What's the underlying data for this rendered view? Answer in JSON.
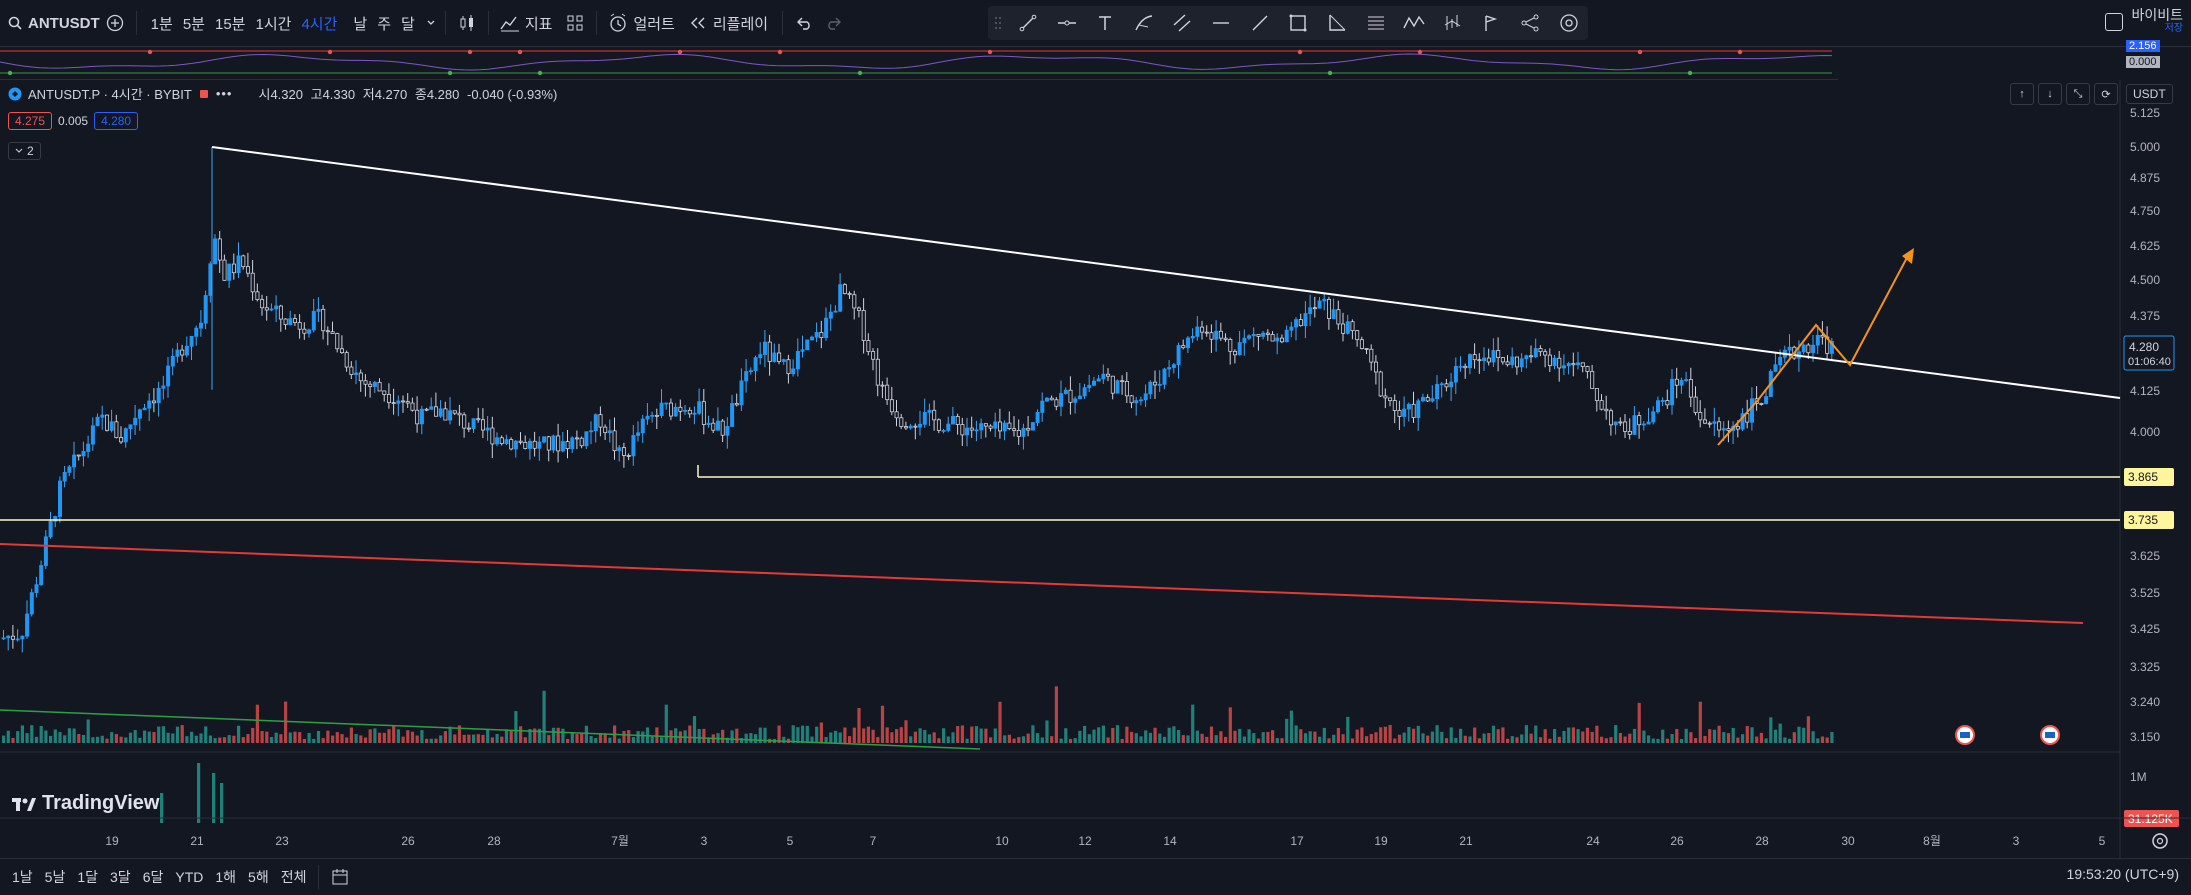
{
  "toolbar": {
    "symbol": "ANTUSDT",
    "intervals": [
      "1분",
      "5분",
      "15분",
      "1시간",
      "4시간",
      "날",
      "주",
      "달"
    ],
    "active_interval": "4시간",
    "indicators_label": "지표",
    "alert_label": "얼러트",
    "replay_label": "리플레이"
  },
  "brand": {
    "name": "바이비트",
    "sub": "저장"
  },
  "legend": {
    "symbol_line": "ANTUSDT.P · 4시간 · BYBIT",
    "open": "시4.320",
    "high": "고4.330",
    "low": "저4.270",
    "close": "종4.280",
    "change": "-0.040 (-0.93%)",
    "bid": "4.275",
    "spread": "0.005",
    "ask": "4.280",
    "collapse": "2"
  },
  "indicator_pane": {
    "value_top": "2.156",
    "value_zero": "0.000"
  },
  "price_axis": {
    "unit": "USDT",
    "ticks": [
      "5.125",
      "5.000",
      "4.875",
      "4.750",
      "4.625",
      "4.500",
      "4.375",
      "4.125",
      "4.000",
      "3.625",
      "3.525",
      "3.425",
      "3.325",
      "3.240",
      "3.150"
    ],
    "current_price": "4.280",
    "countdown": "01:06:40",
    "level_1": "3.865",
    "level_2": "3.735"
  },
  "volume_axis": {
    "tick": "1M",
    "current": "31.125K"
  },
  "time_axis": [
    "19",
    "21",
    "23",
    "26",
    "28",
    "7월",
    "3",
    "5",
    "7",
    "10",
    "12",
    "14",
    "17",
    "19",
    "21",
    "24",
    "26",
    "28",
    "30",
    "8월",
    "3",
    "5"
  ],
  "bottom_bar": {
    "ranges": [
      "1날",
      "5날",
      "1달",
      "3달",
      "6달",
      "YTD",
      "1해",
      "5해",
      "전체"
    ],
    "clock": "19:53:20 (UTC+9)"
  },
  "logo": "TradingView",
  "colors": {
    "up": "#26a69a",
    "up_candle": "#2196f3",
    "down": "#ef5350",
    "bg": "#131722",
    "arrow": "#f7931a"
  },
  "chart_data": {
    "type": "candlestick",
    "symbol": "ANTUSDT.P",
    "interval": "4h",
    "exchange": "BYBIT",
    "last": {
      "open": 4.32,
      "high": 4.33,
      "low": 4.27,
      "close": 4.28
    },
    "y_range": [
      3.15,
      5.15
    ],
    "horizontal_levels": [
      3.865,
      3.735
    ],
    "x_labels": [
      "19",
      "21",
      "23",
      "26",
      "28",
      "7월",
      "3",
      "5",
      "7",
      "10",
      "12",
      "14",
      "17",
      "19",
      "21",
      "24",
      "26",
      "28",
      "30",
      "8월",
      "3",
      "5"
    ]
  }
}
